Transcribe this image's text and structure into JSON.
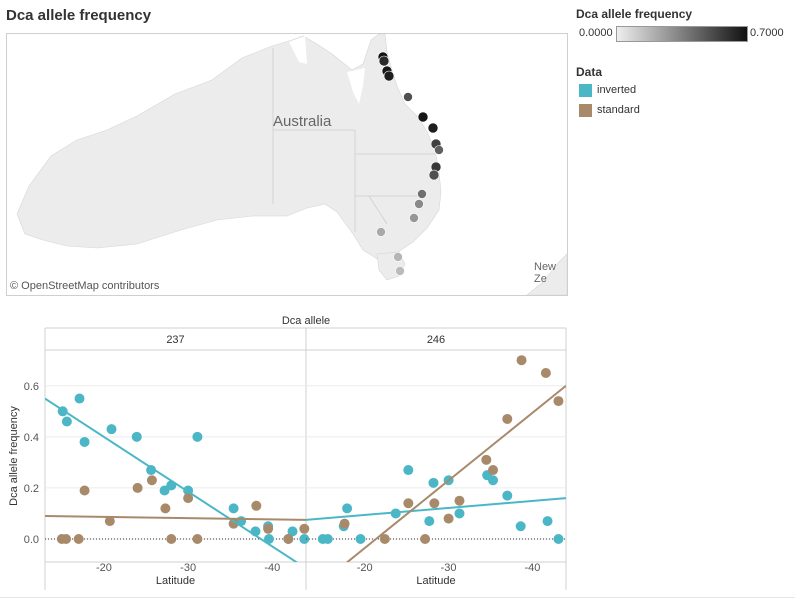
{
  "title": "Dca allele frequency",
  "map": {
    "country_label": "Australia",
    "nz_label": "New Ze",
    "attribution": "© OpenStreetMap contributors",
    "points": [
      {
        "freq": 0.7,
        "size": "L"
      },
      {
        "freq": 0.62,
        "size": "L"
      },
      {
        "freq": 0.68,
        "size": "L"
      },
      {
        "freq": 0.66,
        "size": "L"
      },
      {
        "freq": 0.5,
        "size": "M"
      },
      {
        "freq": 0.68,
        "size": "L"
      },
      {
        "freq": 0.66,
        "size": "L"
      },
      {
        "freq": 0.55,
        "size": "L"
      },
      {
        "freq": 0.45,
        "size": "M"
      },
      {
        "freq": 0.58,
        "size": "L"
      },
      {
        "freq": 0.5,
        "size": "L"
      },
      {
        "freq": 0.4,
        "size": "M"
      },
      {
        "freq": 0.32,
        "size": "M"
      },
      {
        "freq": 0.28,
        "size": "M"
      },
      {
        "freq": 0.22,
        "size": "M"
      },
      {
        "freq": 0.18,
        "size": "M"
      },
      {
        "freq": 0.16,
        "size": "M"
      }
    ]
  },
  "legend": {
    "freq_title": "Dca allele frequency",
    "freq_min": "0.0000",
    "freq_max": "0.7000",
    "data_title": "Data",
    "items": [
      {
        "label": "inverted",
        "color": "#4bb7c6"
      },
      {
        "label": "standard",
        "color": "#a88a6b"
      }
    ]
  },
  "chart_data": {
    "type": "scatter",
    "column_header": "Dca allele",
    "xlabel": "Latitude",
    "ylabel": "Dca allele frequency",
    "xlim": [
      -13,
      -44
    ],
    "xticks": [
      -20,
      -30,
      -40
    ],
    "ylim": [
      -0.09,
      0.74
    ],
    "yticks": [
      0.0,
      0.2,
      0.4,
      0.6
    ],
    "ytick_labels": [
      "0.0",
      "0.2",
      "0.4",
      "0.6"
    ],
    "colors": {
      "inverted": "#4bb7c6",
      "standard": "#a88a6b"
    },
    "panels": [
      {
        "label": "237",
        "series": [
          {
            "key": "inverted",
            "points": [
              [
                -15.1,
                0.5
              ],
              [
                -15.6,
                0.46
              ],
              [
                -17.1,
                0.55
              ],
              [
                -17.7,
                0.38
              ],
              [
                -20.9,
                0.43
              ],
              [
                -23.9,
                0.4
              ],
              [
                -25.6,
                0.27
              ],
              [
                -27.2,
                0.19
              ],
              [
                -28.0,
                0.21
              ],
              [
                -30.0,
                0.19
              ],
              [
                -31.1,
                0.4
              ],
              [
                -35.4,
                0.12
              ],
              [
                -36.3,
                0.07
              ],
              [
                -38.0,
                0.03
              ],
              [
                -39.5,
                0.05
              ],
              [
                -39.6,
                0.0
              ],
              [
                -41.9,
                0.0
              ],
              [
                -42.4,
                0.03
              ],
              [
                -43.8,
                0.0
              ]
            ]
          },
          {
            "key": "standard",
            "points": [
              [
                -15.0,
                0.0
              ],
              [
                -15.5,
                0.0
              ],
              [
                -17.0,
                0.0
              ],
              [
                -17.7,
                0.19
              ],
              [
                -20.7,
                0.07
              ],
              [
                -24.0,
                0.2
              ],
              [
                -25.7,
                0.23
              ],
              [
                -27.3,
                0.12
              ],
              [
                -28.0,
                0.0
              ],
              [
                -30.0,
                0.16
              ],
              [
                -31.1,
                0.0
              ],
              [
                -35.4,
                0.06
              ],
              [
                -38.1,
                0.13
              ],
              [
                -39.5,
                0.04
              ],
              [
                -41.9,
                0.0
              ],
              [
                -43.8,
                0.04
              ]
            ]
          }
        ],
        "trends": [
          {
            "key": "inverted",
            "x": [
              -13.0,
              -44.0
            ],
            "y": [
              0.55,
              -0.115
            ]
          },
          {
            "key": "standard",
            "x": [
              -13.0,
              -44.0
            ],
            "y": [
              0.09,
              0.075
            ]
          }
        ]
      },
      {
        "label": "246",
        "series": [
          {
            "key": "inverted",
            "points": [
              [
                -15.0,
                0.0
              ],
              [
                -15.6,
                0.0
              ],
              [
                -17.5,
                0.05
              ],
              [
                -17.9,
                0.12
              ],
              [
                -19.5,
                0.0
              ],
              [
                -23.7,
                0.1
              ],
              [
                -25.2,
                0.27
              ],
              [
                -27.7,
                0.07
              ],
              [
                -28.2,
                0.22
              ],
              [
                -30.0,
                0.23
              ],
              [
                -31.3,
                0.1
              ],
              [
                -34.6,
                0.25
              ],
              [
                -35.3,
                0.23
              ],
              [
                -37.0,
                0.17
              ],
              [
                -38.6,
                0.05
              ],
              [
                -41.8,
                0.07
              ],
              [
                -43.1,
                0.0
              ]
            ]
          },
          {
            "key": "standard",
            "points": [
              [
                -17.6,
                0.06
              ],
              [
                -22.4,
                0.0
              ],
              [
                -25.2,
                0.14
              ],
              [
                -27.2,
                0.0
              ],
              [
                -28.3,
                0.14
              ],
              [
                -30.0,
                0.08
              ],
              [
                -31.3,
                0.15
              ],
              [
                -34.5,
                0.31
              ],
              [
                -35.3,
                0.27
              ],
              [
                -37.0,
                0.47
              ],
              [
                -38.7,
                0.7
              ],
              [
                -41.6,
                0.65
              ],
              [
                -43.1,
                0.54
              ]
            ]
          }
        ],
        "trends": [
          {
            "key": "inverted",
            "x": [
              -13.0,
              -44.0
            ],
            "y": [
              0.075,
              0.16
            ]
          },
          {
            "key": "standard",
            "x": [
              -17.0,
              -44.0
            ],
            "y": [
              -0.115,
              0.6
            ]
          }
        ]
      }
    ]
  }
}
